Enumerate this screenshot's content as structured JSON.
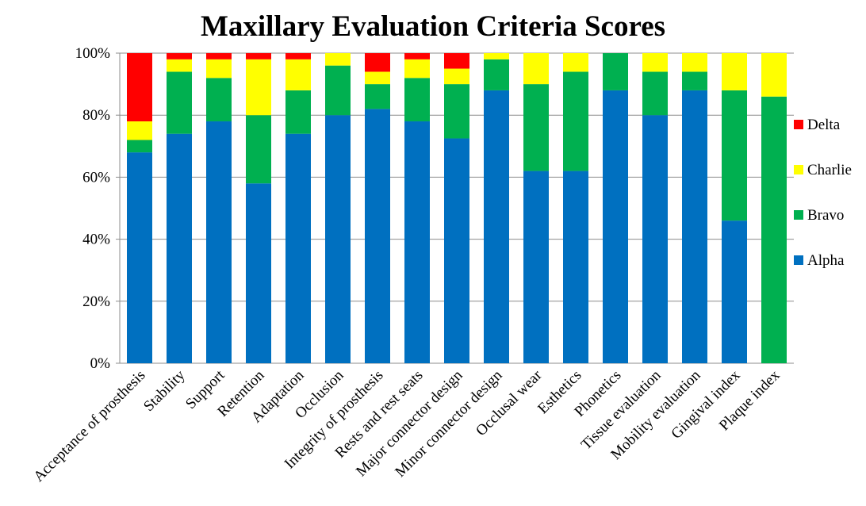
{
  "chart_data": {
    "type": "bar",
    "stacked": true,
    "percent": true,
    "title": "Maxillary Evaluation Criteria Scores",
    "xlabel": "",
    "ylabel": "",
    "ylim": [
      0,
      100
    ],
    "yticks": [
      "0%",
      "20%",
      "40%",
      "60%",
      "80%",
      "100%"
    ],
    "grid": true,
    "legend_position": "right",
    "categories": [
      "Acceptance of prosthesis",
      "Stability",
      "Support",
      "Retention",
      "Adaptation",
      "Occlusion",
      "Integrity of prosthesis",
      "Rests and rest seats",
      "Major connector design",
      "Minor connector design",
      "Occlusal wear",
      "Esthetics",
      "Phonetics",
      "Tissue evaluation",
      "Mobility evaluation",
      "Gingival index",
      "Plaque index"
    ],
    "series": [
      {
        "name": "Alpha",
        "color": "#0070C0",
        "values": [
          68,
          74,
          78,
          58,
          74,
          80,
          82,
          78,
          72.5,
          88,
          62,
          62,
          88,
          80,
          88,
          46,
          0
        ]
      },
      {
        "name": "Bravo",
        "color": "#00B050",
        "values": [
          4,
          20,
          14,
          22,
          14,
          16,
          8,
          14,
          17.5,
          10,
          28,
          32,
          12,
          14,
          6,
          42,
          86
        ]
      },
      {
        "name": "Charlie",
        "color": "#FFFF00",
        "values": [
          6,
          4,
          6,
          18,
          10,
          4,
          4,
          6,
          5,
          2,
          10,
          6,
          0,
          6,
          6,
          12,
          14
        ]
      },
      {
        "name": "Delta",
        "color": "#FF0000",
        "values": [
          22,
          2,
          2,
          2,
          2,
          0,
          6,
          2,
          5,
          0,
          0,
          0,
          0,
          0,
          0,
          0,
          0
        ]
      }
    ]
  }
}
